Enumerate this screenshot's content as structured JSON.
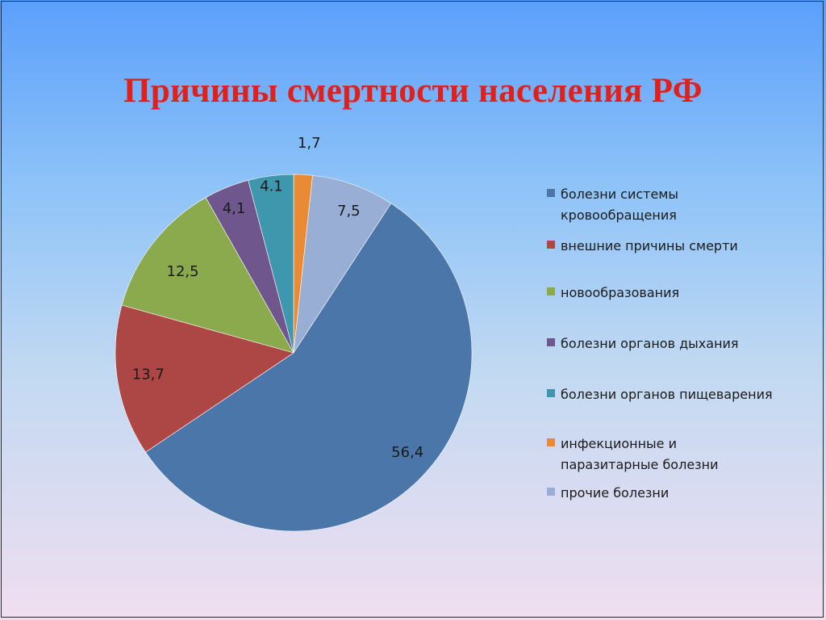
{
  "title": "Причины смертности населения РФ",
  "chart_data": {
    "type": "pie",
    "series": [
      {
        "name": "болезни системы кровообращения",
        "value": 56.4,
        "label": "56,4",
        "color": "#4a76aa"
      },
      {
        "name": "внешние причины смерти",
        "value": 13.7,
        "label": "13,7",
        "color": "#ad4745"
      },
      {
        "name": "новообразования",
        "value": 12.5,
        "label": "12,5",
        "color": "#8ba94d"
      },
      {
        "name": "болезни органов дыхания",
        "value": 4.1,
        "label": "4,1",
        "color": "#6f578e"
      },
      {
        "name": "болезни органов пищеварения",
        "value": 4.1,
        "label": "4.1",
        "color": "#3f97ad"
      },
      {
        "name": "инфекционные и паразитарные болезни",
        "value": 1.7,
        "label": "1,7",
        "color": "#e98a34"
      },
      {
        "name": "прочие болезни",
        "value": 7.5,
        "label": "7,5",
        "color": "#98aed5"
      }
    ],
    "legend": "right"
  }
}
